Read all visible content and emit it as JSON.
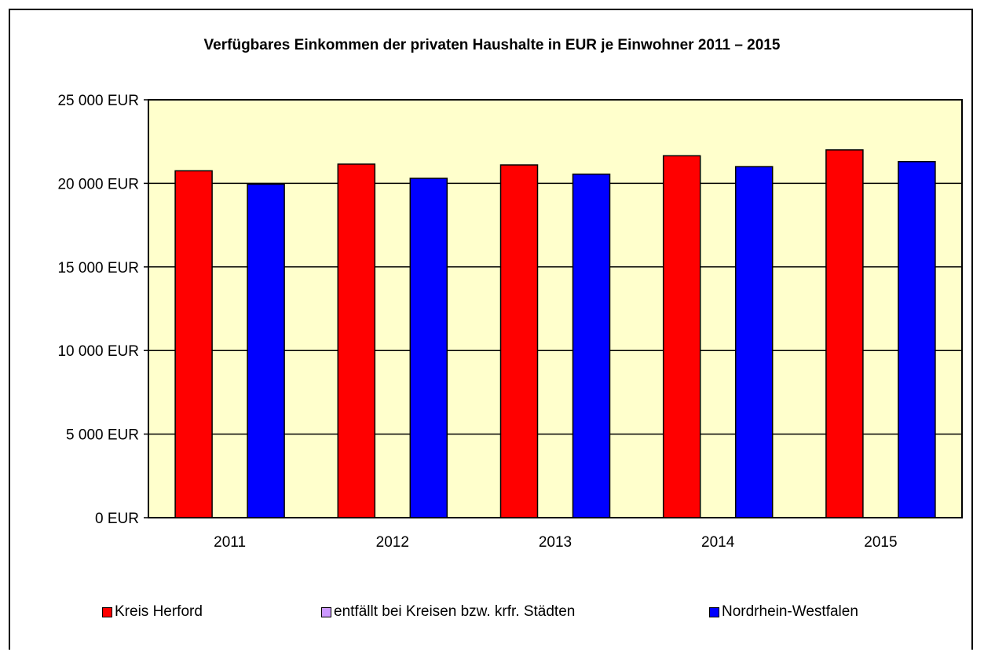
{
  "chart_data": {
    "type": "bar",
    "title": "Verfügbares Einkommen der privaten Haushalte in EUR je Einwohner 2011 – 2015",
    "xlabel": "",
    "ylabel": "",
    "categories": [
      "2011",
      "2012",
      "2013",
      "2014",
      "2015"
    ],
    "ylim": [
      0,
      25000
    ],
    "y_ticks": [
      0,
      5000,
      10000,
      15000,
      20000,
      25000
    ],
    "y_tick_labels": [
      "0 EUR",
      "5 000 EUR",
      "10 000 EUR",
      "15 000 EUR",
      "20 000 EUR",
      "25 000 EUR"
    ],
    "grid": true,
    "plot_background": "#FFFFCC",
    "legend_position": "bottom",
    "series": [
      {
        "name": "Kreis Herford",
        "color": "#FF0000",
        "values": [
          20750,
          21150,
          21100,
          21650,
          22000
        ]
      },
      {
        "name": "entfällt bei Kreisen bzw. krfr. Städten",
        "color": "#CC99FF",
        "values": [
          null,
          null,
          null,
          null,
          null
        ]
      },
      {
        "name": "Nordrhein-Westfalen",
        "color": "#0000FF",
        "values": [
          19950,
          20300,
          20550,
          21000,
          21300
        ]
      }
    ]
  }
}
